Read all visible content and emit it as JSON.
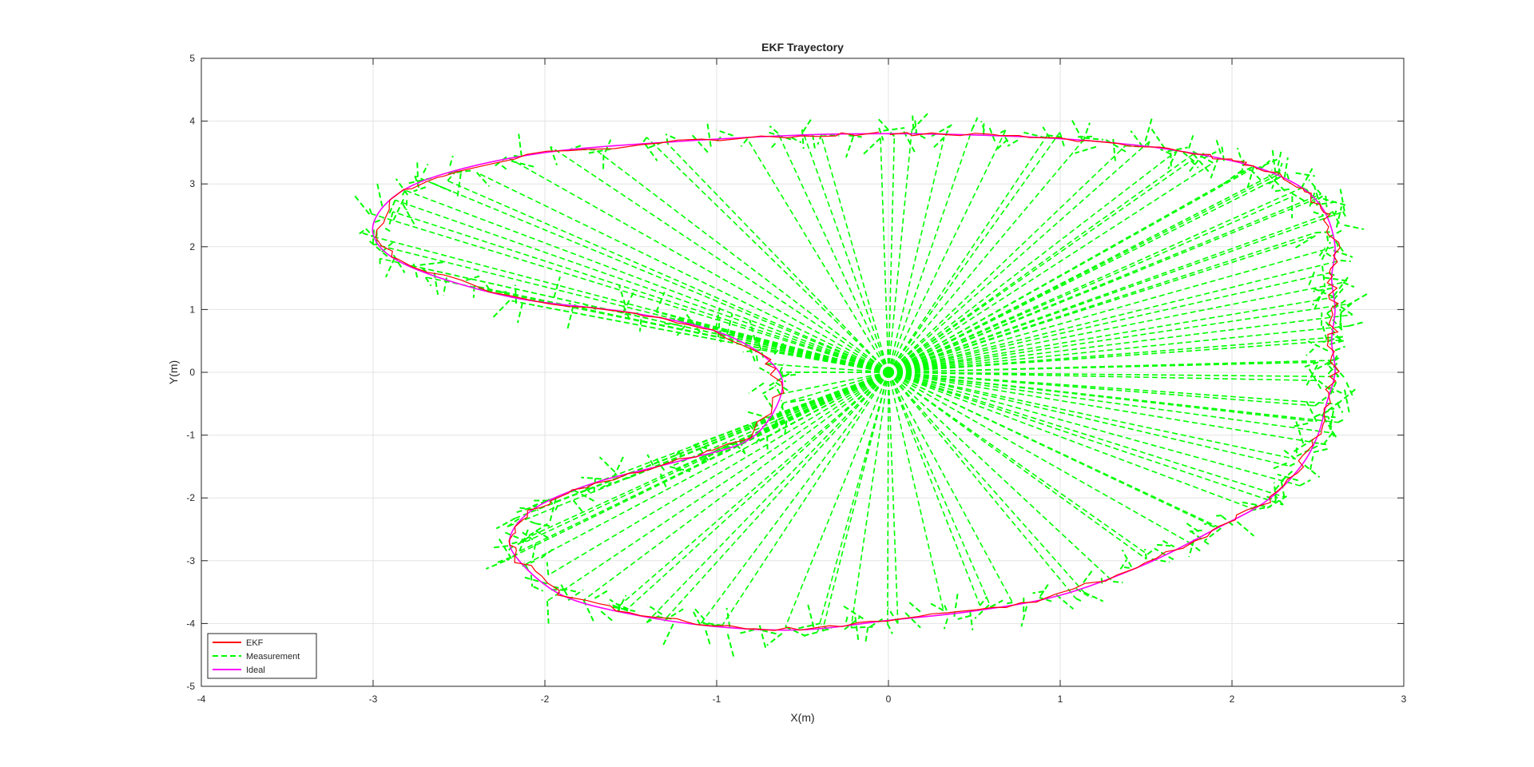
{
  "chart_data": {
    "type": "line",
    "title": "EKF Trayectory",
    "xlabel": "X(m)",
    "ylabel": "Y(m)",
    "xlim": [
      -4,
      3
    ],
    "ylim": [
      -5,
      5
    ],
    "xticks": [
      -4,
      -3,
      -2,
      -1,
      0,
      1,
      2,
      3
    ],
    "yticks": [
      -5,
      -4,
      -3,
      -2,
      -1,
      0,
      1,
      2,
      3,
      4,
      5
    ],
    "grid": true,
    "legend_position": "bottom-left",
    "series": [
      {
        "name": "EKF",
        "color": "#ff0000",
        "style": "solid",
        "x": [
          0.0,
          0.5,
          1.0,
          1.5,
          1.85,
          2.1,
          2.3,
          2.45,
          2.55,
          2.6,
          2.58,
          2.6,
          2.58,
          2.6,
          2.55,
          2.5,
          2.4,
          2.2,
          1.9,
          1.5,
          1.0,
          0.5,
          0.0,
          -0.5,
          -1.0,
          -1.5,
          -1.9,
          -2.15,
          -2.2,
          -2.05,
          -1.7,
          -1.2,
          -0.8,
          -0.62,
          -0.7,
          -1.0,
          -1.5,
          -2.2,
          -2.8,
          -3.0,
          -2.9,
          -2.6,
          -2.0,
          -1.2,
          -0.5,
          0.0
        ],
        "y": [
          3.8,
          3.78,
          3.72,
          3.6,
          3.45,
          3.3,
          3.1,
          2.85,
          2.5,
          2.0,
          1.5,
          1.0,
          0.5,
          0.0,
          -0.5,
          -1.0,
          -1.5,
          -2.05,
          -2.5,
          -3.05,
          -3.55,
          -3.8,
          -3.95,
          -4.1,
          -4.05,
          -3.85,
          -3.55,
          -3.0,
          -2.6,
          -2.15,
          -1.75,
          -1.4,
          -1.05,
          -0.3,
          0.2,
          0.65,
          0.95,
          1.2,
          1.7,
          2.2,
          2.75,
          3.15,
          3.5,
          3.68,
          3.78,
          3.8
        ]
      },
      {
        "name": "Measurement",
        "color": "#00ff00",
        "style": "dashed",
        "x": [
          0.0,
          0.5,
          1.0,
          1.5,
          1.85,
          2.1,
          2.3,
          2.45,
          2.55,
          2.6,
          2.58,
          2.6,
          2.58,
          2.6,
          2.55,
          2.5,
          2.4,
          2.2,
          1.9,
          1.5,
          1.0,
          0.5,
          0.0,
          -0.5,
          -1.0,
          -1.5,
          -1.9,
          -2.15,
          -2.2,
          -2.05,
          -1.7,
          -1.2,
          -0.8,
          -0.62,
          -0.7,
          -1.0,
          -1.5,
          -2.2,
          -2.8,
          -3.0,
          -2.9,
          -2.6,
          -2.0,
          -1.2,
          -0.5,
          0.0
        ],
        "y": [
          3.8,
          3.78,
          3.72,
          3.6,
          3.45,
          3.3,
          3.1,
          2.85,
          2.5,
          2.0,
          1.5,
          1.0,
          0.5,
          0.0,
          -0.5,
          -1.0,
          -1.5,
          -2.05,
          -2.5,
          -3.05,
          -3.55,
          -3.8,
          -3.95,
          -4.1,
          -4.05,
          -3.85,
          -3.55,
          -3.0,
          -2.6,
          -2.15,
          -1.75,
          -1.4,
          -1.05,
          -0.3,
          0.2,
          0.65,
          0.95,
          1.2,
          1.7,
          2.2,
          2.75,
          3.15,
          3.5,
          3.68,
          3.78,
          3.8
        ]
      },
      {
        "name": "Ideal",
        "color": "#ff00ff",
        "style": "solid",
        "x": [
          0.0,
          0.5,
          1.0,
          1.5,
          1.85,
          2.1,
          2.3,
          2.45,
          2.55,
          2.6,
          2.58,
          2.6,
          2.58,
          2.6,
          2.55,
          2.5,
          2.4,
          2.2,
          1.9,
          1.5,
          1.0,
          0.5,
          0.0,
          -0.5,
          -1.0,
          -1.5,
          -1.9,
          -2.15,
          -2.2,
          -2.05,
          -1.7,
          -1.2,
          -0.8,
          -0.62,
          -0.7,
          -1.0,
          -1.5,
          -2.2,
          -2.8,
          -3.0,
          -2.9,
          -2.6,
          -2.0,
          -1.2,
          -0.5,
          0.0
        ],
        "y": [
          3.8,
          3.78,
          3.72,
          3.6,
          3.45,
          3.3,
          3.1,
          2.85,
          2.5,
          2.0,
          1.5,
          1.0,
          0.5,
          0.0,
          -0.5,
          -1.0,
          -1.5,
          -2.05,
          -2.5,
          -3.05,
          -3.55,
          -3.8,
          -3.95,
          -4.1,
          -4.05,
          -3.85,
          -3.55,
          -3.0,
          -2.6,
          -2.15,
          -1.75,
          -1.4,
          -1.05,
          -0.3,
          0.2,
          0.65,
          0.95,
          1.2,
          1.7,
          2.2,
          2.75,
          3.15,
          3.5,
          3.68,
          3.78,
          3.8
        ]
      }
    ]
  }
}
